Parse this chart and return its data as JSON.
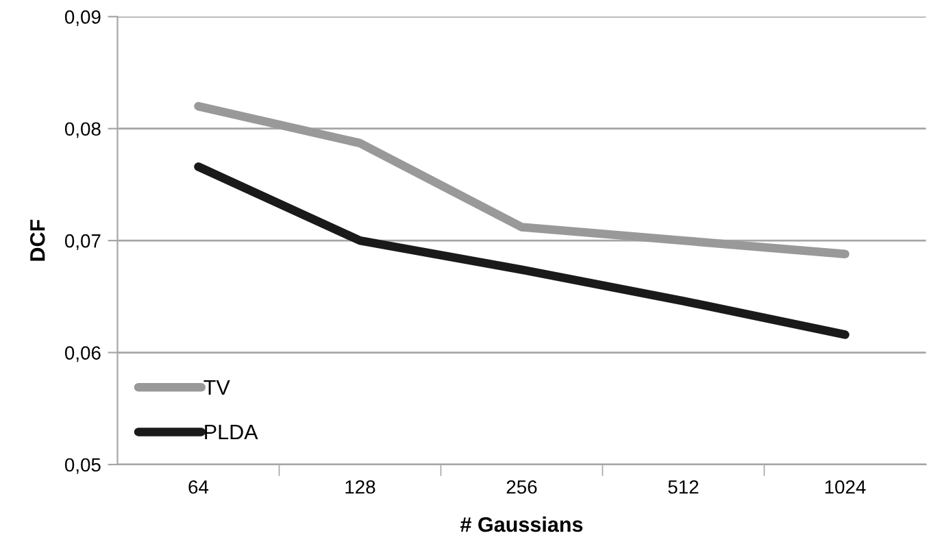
{
  "chart_data": {
    "type": "line",
    "xlabel": "# Gaussians",
    "ylabel": "DCF",
    "categories": [
      "64",
      "128",
      "256",
      "512",
      "1024"
    ],
    "series": [
      {
        "name": "TV",
        "color": "#999999",
        "values": [
          0.082,
          0.0787,
          0.0712,
          0.07,
          0.0688
        ]
      },
      {
        "name": "PLDA",
        "color": "#1a1a1a",
        "values": [
          0.0766,
          0.07,
          0.0674,
          0.0646,
          0.0616
        ]
      }
    ],
    "ylim": [
      0.05,
      0.09
    ],
    "yticks": [
      {
        "value": 0.05,
        "label": "0,05"
      },
      {
        "value": 0.06,
        "label": "0,06"
      },
      {
        "value": 0.07,
        "label": "0,07"
      },
      {
        "value": 0.08,
        "label": "0,08"
      },
      {
        "value": 0.09,
        "label": "0,09"
      }
    ],
    "grid": "y",
    "legend": "bottom left",
    "marker": "none",
    "line_style": "solid"
  }
}
